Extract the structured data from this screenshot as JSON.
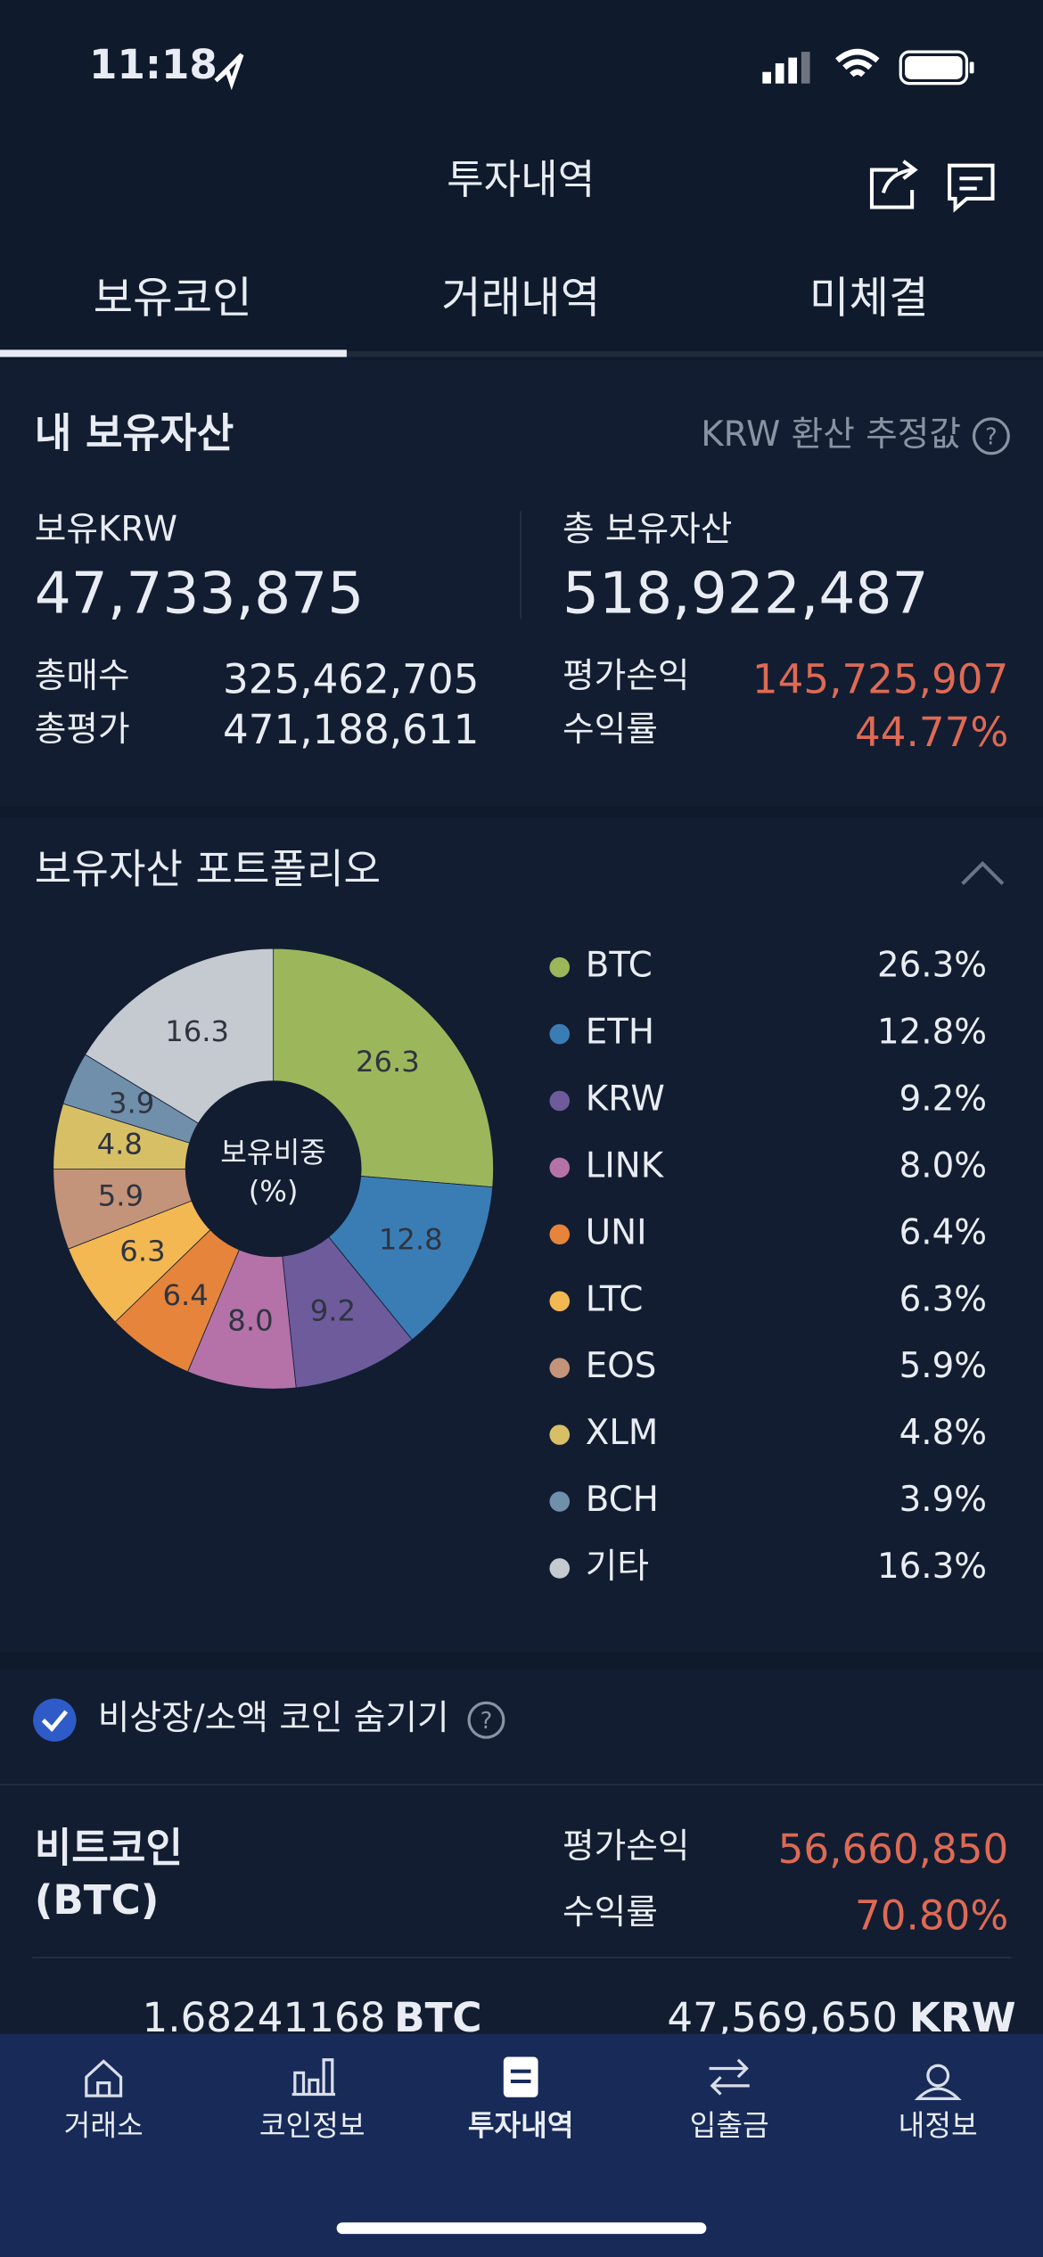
{
  "status_bar": {
    "time": "11:18"
  },
  "header": {
    "title": "투자내역"
  },
  "tabs": [
    "보유코인",
    "거래내역",
    "미체결"
  ],
  "assets": {
    "title": "내 보유자산",
    "note": "KRW 환산 추정값",
    "help": "?",
    "krw_label": "보유KRW",
    "krw": "47,733,875",
    "total_label": "총 보유자산",
    "total": "518,922,487",
    "buy_label": "총매수",
    "buy": "325,462,705",
    "eval_label": "총평가",
    "eval": "471,188,611",
    "pnl_label": "평가손익",
    "pnl": "145,725,907",
    "rate_label": "수익률",
    "rate": "44.77%"
  },
  "chart_data": {
    "type": "pie",
    "title": "보유자산 포트폴리오",
    "center_label": [
      "보유비중",
      "(%)"
    ],
    "categories": [
      "BTC",
      "ETH",
      "KRW",
      "LINK",
      "UNI",
      "LTC",
      "EOS",
      "XLM",
      "BCH",
      "기타"
    ],
    "values": [
      26.3,
      12.8,
      9.2,
      8.0,
      6.4,
      6.3,
      5.9,
      4.8,
      3.9,
      16.3
    ],
    "value_labels": [
      "26.3",
      "12.8",
      "9.2",
      "8.0",
      "6.4",
      "6.3",
      "5.9",
      "4.8",
      "3.9",
      "16.3"
    ],
    "legend_labels": [
      "26.3%",
      "12.8%",
      "9.2%",
      "8.0%",
      "6.4%",
      "6.3%",
      "5.9%",
      "4.8%",
      "3.9%",
      "16.3%"
    ],
    "colors": [
      "#9cb65b",
      "#3a7db4",
      "#6d5b9c",
      "#b472a9",
      "#e5843a",
      "#f3b852",
      "#c3937a",
      "#d7bf66",
      "#6f8fab",
      "#c5c9d0"
    ]
  },
  "filter": {
    "label": "비상장/소액 코인 숨기기",
    "help": "?"
  },
  "holdings": [
    {
      "name": "비트코인",
      "symbol": "(BTC)",
      "pnl_label": "평가손익",
      "pnl": "56,660,850",
      "rate_label": "수익률",
      "rate": "70.80%",
      "quantity": "1.68241168",
      "quantity_unit": "BTC",
      "value": "47,569,650",
      "value_unit": "KRW"
    }
  ],
  "nav": [
    "거래소",
    "코인정보",
    "투자내역",
    "입출금",
    "내정보"
  ]
}
